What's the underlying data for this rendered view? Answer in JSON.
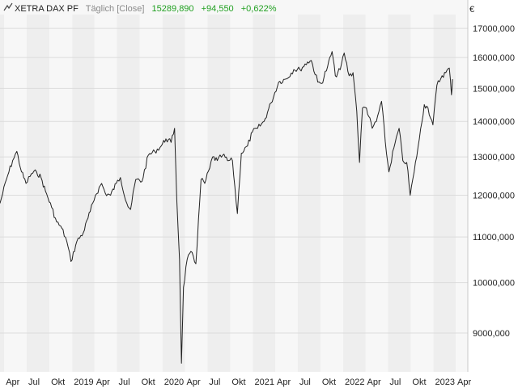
{
  "header": {
    "instrument": "XETRA DAX PF",
    "mode": "Täglich [Close]",
    "last": "15289,890",
    "change_abs": "+94,550",
    "change_pct": "+0,622%"
  },
  "colors": {
    "line": "#222222",
    "positive": "#21a021",
    "band_light": "#f7f7f7",
    "band_dark": "#eeeeee",
    "grid": "#dcdcdc"
  },
  "icons": {
    "chart": "line-chart-icon"
  },
  "chart_data": {
    "type": "line",
    "y_scale": "log",
    "ylim": [
      8300,
      17500
    ],
    "xlim": [
      "2018-03-15",
      "2023-05-20"
    ],
    "y_unit": "€",
    "y_ticks": [
      {
        "value": 9000,
        "label": "9000,000"
      },
      {
        "value": 10000,
        "label": "10000,000"
      },
      {
        "value": 11000,
        "label": "11000,000"
      },
      {
        "value": 12000,
        "label": "12000,000"
      },
      {
        "value": 13000,
        "label": "13000,000"
      },
      {
        "value": 14000,
        "label": "14000,000"
      },
      {
        "value": 15000,
        "label": "15000,000"
      },
      {
        "value": 16000,
        "label": "16000,000"
      },
      {
        "value": 17000,
        "label": "17000,000"
      }
    ],
    "x_ticks": [
      {
        "date": "2018-04-01",
        "label": "Apr"
      },
      {
        "date": "2018-07-01",
        "label": "Jul"
      },
      {
        "date": "2018-10-01",
        "label": "Okt"
      },
      {
        "date": "2019-01-01",
        "label": "2019"
      },
      {
        "date": "2019-04-01",
        "label": "Apr"
      },
      {
        "date": "2019-07-01",
        "label": "Jul"
      },
      {
        "date": "2019-10-01",
        "label": "Okt"
      },
      {
        "date": "2020-01-01",
        "label": "2020"
      },
      {
        "date": "2020-04-01",
        "label": "Apr"
      },
      {
        "date": "2020-07-01",
        "label": "Jul"
      },
      {
        "date": "2020-10-01",
        "label": "Okt"
      },
      {
        "date": "2021-01-01",
        "label": "2021"
      },
      {
        "date": "2021-04-01",
        "label": "Apr"
      },
      {
        "date": "2021-07-01",
        "label": "Jul"
      },
      {
        "date": "2021-10-01",
        "label": "Okt"
      },
      {
        "date": "2022-01-01",
        "label": "2022"
      },
      {
        "date": "2022-04-01",
        "label": "Apr"
      },
      {
        "date": "2022-07-01",
        "label": "Jul"
      },
      {
        "date": "2022-10-01",
        "label": "Okt"
      },
      {
        "date": "2023-01-01",
        "label": "2023"
      },
      {
        "date": "2023-04-01",
        "label": "Apr"
      }
    ],
    "grid": true,
    "series": [
      {
        "points": [
          [
            "2018-03-15",
            11800
          ],
          [
            "2018-04-10",
            12400
          ],
          [
            "2018-05-05",
            12900
          ],
          [
            "2018-05-22",
            13150
          ],
          [
            "2018-06-10",
            12600
          ],
          [
            "2018-06-28",
            12300
          ],
          [
            "2018-07-20",
            12550
          ],
          [
            "2018-08-10",
            12600
          ],
          [
            "2018-08-28",
            12450
          ],
          [
            "2018-09-15",
            12100
          ],
          [
            "2018-10-10",
            11700
          ],
          [
            "2018-10-30",
            11350
          ],
          [
            "2018-11-20",
            11200
          ],
          [
            "2018-12-10",
            10900
          ],
          [
            "2018-12-27",
            10450
          ],
          [
            "2019-01-20",
            10900
          ],
          [
            "2019-02-15",
            11100
          ],
          [
            "2019-03-15",
            11600
          ],
          [
            "2019-04-05",
            12000
          ],
          [
            "2019-04-30",
            12300
          ],
          [
            "2019-05-15",
            12050
          ],
          [
            "2019-06-05",
            12000
          ],
          [
            "2019-06-28",
            12300
          ],
          [
            "2019-07-15",
            12450
          ],
          [
            "2019-08-10",
            11800
          ],
          [
            "2019-08-25",
            11650
          ],
          [
            "2019-09-15",
            12400
          ],
          [
            "2019-10-10",
            12350
          ],
          [
            "2019-11-05",
            13050
          ],
          [
            "2019-12-01",
            13150
          ],
          [
            "2019-12-27",
            13300
          ],
          [
            "2020-01-15",
            13500
          ],
          [
            "2020-02-05",
            13400
          ],
          [
            "2020-02-19",
            13800
          ],
          [
            "2020-02-28",
            11900
          ],
          [
            "2020-03-10",
            10500
          ],
          [
            "2020-03-18",
            8450
          ],
          [
            "2020-03-26",
            9900
          ],
          [
            "2020-04-10",
            10500
          ],
          [
            "2020-04-30",
            10650
          ],
          [
            "2020-05-15",
            10400
          ],
          [
            "2020-06-05",
            12400
          ],
          [
            "2020-06-20",
            12300
          ],
          [
            "2020-07-10",
            12700
          ],
          [
            "2020-07-22",
            13000
          ],
          [
            "2020-08-10",
            12900
          ],
          [
            "2020-09-01",
            13050
          ],
          [
            "2020-09-20",
            12900
          ],
          [
            "2020-10-10",
            12900
          ],
          [
            "2020-10-30",
            11550
          ],
          [
            "2020-11-15",
            13100
          ],
          [
            "2020-12-10",
            13300
          ],
          [
            "2020-12-30",
            13700
          ],
          [
            "2021-01-20",
            13800
          ],
          [
            "2021-02-15",
            14000
          ],
          [
            "2021-03-15",
            14550
          ],
          [
            "2021-04-15",
            15200
          ],
          [
            "2021-05-15",
            15300
          ],
          [
            "2021-06-15",
            15600
          ],
          [
            "2021-07-10",
            15600
          ],
          [
            "2021-08-10",
            15850
          ],
          [
            "2021-08-25",
            15900
          ],
          [
            "2021-09-20",
            15200
          ],
          [
            "2021-10-05",
            15150
          ],
          [
            "2021-10-30",
            15700
          ],
          [
            "2021-11-17",
            16200
          ],
          [
            "2021-11-30",
            15400
          ],
          [
            "2021-12-20",
            15600
          ],
          [
            "2022-01-05",
            16150
          ],
          [
            "2022-01-25",
            15400
          ],
          [
            "2022-02-10",
            15500
          ],
          [
            "2022-02-25",
            14300
          ],
          [
            "2022-03-08",
            12850
          ],
          [
            "2022-03-20",
            14400
          ],
          [
            "2022-04-05",
            14400
          ],
          [
            "2022-04-28",
            13800
          ],
          [
            "2022-05-15",
            14000
          ],
          [
            "2022-06-05",
            14600
          ],
          [
            "2022-06-25",
            13100
          ],
          [
            "2022-07-05",
            12600
          ],
          [
            "2022-07-25",
            13250
          ],
          [
            "2022-08-15",
            13800
          ],
          [
            "2022-08-30",
            12900
          ],
          [
            "2022-09-15",
            12850
          ],
          [
            "2022-09-29",
            12000
          ],
          [
            "2022-10-15",
            12600
          ],
          [
            "2022-11-05",
            13500
          ],
          [
            "2022-11-25",
            14500
          ],
          [
            "2022-12-10",
            14400
          ],
          [
            "2022-12-30",
            13900
          ],
          [
            "2023-01-15",
            15100
          ],
          [
            "2023-02-05",
            15400
          ],
          [
            "2023-02-20",
            15500
          ],
          [
            "2023-03-06",
            15650
          ],
          [
            "2023-03-15",
            14800
          ],
          [
            "2023-03-19",
            15290
          ]
        ]
      }
    ]
  }
}
